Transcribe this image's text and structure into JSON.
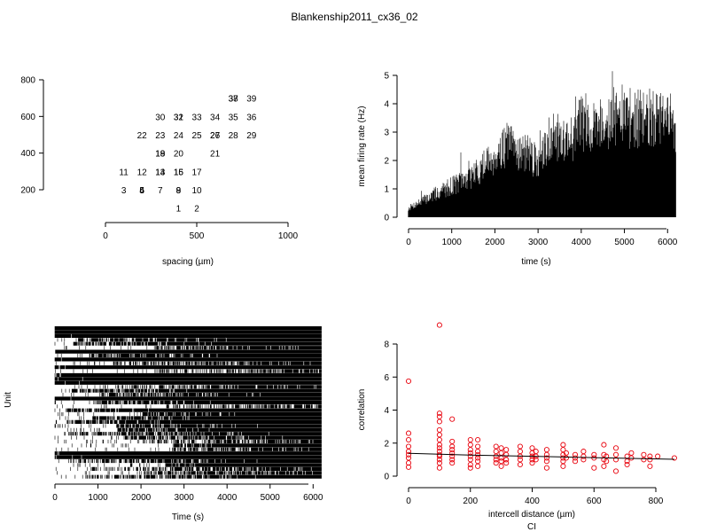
{
  "figure_title": "Blankenship2011_cx36_02",
  "chart_data": [
    {
      "type": "scatter",
      "panel": "electrode-layout",
      "xlabel": "spacing (µm)",
      "ylabel": "",
      "xlim": [
        0,
        1000
      ],
      "ylim": [
        150,
        850
      ],
      "x_ticks": [
        "0",
        "500",
        "1000"
      ],
      "y_ticks": [
        "200",
        "400",
        "600",
        "800"
      ],
      "point_labels": [
        {
          "label": "1",
          "x": 400,
          "y": 100
        },
        {
          "label": "2",
          "x": 500,
          "y": 100
        },
        {
          "label": "3",
          "x": 100,
          "y": 200
        },
        {
          "label": "4",
          "x": 200,
          "y": 200
        },
        {
          "label": "5",
          "x": 200,
          "y": 200
        },
        {
          "label": "6",
          "x": 200,
          "y": 200
        },
        {
          "label": "7",
          "x": 300,
          "y": 200
        },
        {
          "label": "8",
          "x": 400,
          "y": 200
        },
        {
          "label": "9",
          "x": 400,
          "y": 200
        },
        {
          "label": "10",
          "x": 500,
          "y": 200
        },
        {
          "label": "11",
          "x": 100,
          "y": 300
        },
        {
          "label": "12",
          "x": 200,
          "y": 300
        },
        {
          "label": "13",
          "x": 300,
          "y": 300
        },
        {
          "label": "14",
          "x": 300,
          "y": 300
        },
        {
          "label": "15",
          "x": 400,
          "y": 300
        },
        {
          "label": "16",
          "x": 400,
          "y": 300
        },
        {
          "label": "17",
          "x": 500,
          "y": 300
        },
        {
          "label": "18",
          "x": 300,
          "y": 400
        },
        {
          "label": "19",
          "x": 300,
          "y": 400
        },
        {
          "label": "20",
          "x": 400,
          "y": 400
        },
        {
          "label": "21",
          "x": 600,
          "y": 400
        },
        {
          "label": "22",
          "x": 200,
          "y": 500
        },
        {
          "label": "23",
          "x": 300,
          "y": 500
        },
        {
          "label": "24",
          "x": 400,
          "y": 500
        },
        {
          "label": "25",
          "x": 500,
          "y": 500
        },
        {
          "label": "26",
          "x": 600,
          "y": 500
        },
        {
          "label": "27",
          "x": 600,
          "y": 500
        },
        {
          "label": "28",
          "x": 700,
          "y": 500
        },
        {
          "label": "29",
          "x": 800,
          "y": 500
        },
        {
          "label": "30",
          "x": 300,
          "y": 600
        },
        {
          "label": "31",
          "x": 400,
          "y": 600
        },
        {
          "label": "32",
          "x": 400,
          "y": 600
        },
        {
          "label": "33",
          "x": 500,
          "y": 600
        },
        {
          "label": "34",
          "x": 600,
          "y": 600
        },
        {
          "label": "35",
          "x": 700,
          "y": 600
        },
        {
          "label": "36",
          "x": 800,
          "y": 600
        },
        {
          "label": "37",
          "x": 700,
          "y": 700
        },
        {
          "label": "38",
          "x": 700,
          "y": 700
        },
        {
          "label": "39",
          "x": 800,
          "y": 700
        }
      ]
    },
    {
      "type": "area",
      "panel": "mean-firing-rate",
      "xlabel": "time (s)",
      "ylabel": "mean firing rate (Hz)",
      "xlim": [
        0,
        6200
      ],
      "ylim": [
        0,
        5
      ],
      "x_ticks": [
        "0",
        "1000",
        "2000",
        "3000",
        "4000",
        "5000",
        "6000"
      ],
      "y_ticks": [
        "0",
        "1",
        "2",
        "3",
        "4",
        "5"
      ],
      "envelope": {
        "x": [
          0,
          200,
          500,
          800,
          1000,
          1300,
          1600,
          1900,
          2100,
          2300,
          2500,
          2800,
          3000,
          3100,
          3250,
          3500,
          3800,
          4000,
          4300,
          4600,
          4900,
          5200,
          5500,
          5800,
          6000,
          6200
        ],
        "y": [
          0.4,
          0.6,
          0.9,
          1.2,
          1.4,
          1.6,
          2.0,
          2.5,
          2.9,
          3.2,
          3.0,
          2.7,
          2.4,
          2.6,
          3.6,
          3.5,
          3.5,
          4.2,
          4.1,
          4.3,
          4.5,
          4.3,
          4.4,
          4.2,
          4.3,
          4.0
        ]
      }
    },
    {
      "type": "heatmap",
      "panel": "raster",
      "xlabel": "Time (s)",
      "ylabel": "Unit",
      "xlim": [
        0,
        6200
      ],
      "x_ticks": [
        "0",
        "1000",
        "2000",
        "3000",
        "4000",
        "5000",
        "6000"
      ],
      "units": 39
    },
    {
      "type": "scatter",
      "panel": "correlation",
      "title": "",
      "xlabel": "intercell distance (µm)",
      "subtitle": "CI",
      "ylabel": "correlation",
      "xlim": [
        0,
        860
      ],
      "ylim": [
        0,
        9
      ],
      "x_ticks": [
        "0",
        "200",
        "400",
        "600",
        "800"
      ],
      "y_ticks": [
        "0",
        "2",
        "4",
        "6",
        "8"
      ],
      "point_color": "#e8000b",
      "fit_line": {
        "x": [
          0,
          200,
          400,
          600,
          860
        ],
        "y": [
          1.38,
          1.28,
          1.2,
          1.12,
          1.02
        ]
      },
      "points": [
        [
          0,
          5.75
        ],
        [
          0,
          2.6
        ],
        [
          0,
          2.2
        ],
        [
          0,
          1.8
        ],
        [
          0,
          1.5
        ],
        [
          0,
          1.3
        ],
        [
          0,
          1.1
        ],
        [
          0,
          0.8
        ],
        [
          0,
          0.55
        ],
        [
          100,
          9.15
        ],
        [
          100,
          3.8
        ],
        [
          100,
          3.6
        ],
        [
          100,
          3.3
        ],
        [
          100,
          2.8
        ],
        [
          100,
          2.5
        ],
        [
          100,
          2.2
        ],
        [
          100,
          1.9
        ],
        [
          100,
          1.7
        ],
        [
          100,
          1.5
        ],
        [
          100,
          1.3
        ],
        [
          100,
          1.2
        ],
        [
          100,
          1.0
        ],
        [
          100,
          0.8
        ],
        [
          100,
          0.5
        ],
        [
          141,
          3.45
        ],
        [
          141,
          2.1
        ],
        [
          141,
          1.8
        ],
        [
          141,
          1.6
        ],
        [
          141,
          1.4
        ],
        [
          141,
          1.2
        ],
        [
          141,
          1.0
        ],
        [
          141,
          0.8
        ],
        [
          200,
          2.2
        ],
        [
          200,
          1.9
        ],
        [
          200,
          1.6
        ],
        [
          200,
          1.4
        ],
        [
          200,
          1.2
        ],
        [
          200,
          1.0
        ],
        [
          200,
          0.7
        ],
        [
          200,
          0.5
        ],
        [
          224,
          2.2
        ],
        [
          224,
          1.8
        ],
        [
          224,
          1.5
        ],
        [
          224,
          1.3
        ],
        [
          224,
          1.1
        ],
        [
          224,
          0.9
        ],
        [
          224,
          0.6
        ],
        [
          283,
          1.8
        ],
        [
          283,
          1.5
        ],
        [
          283,
          1.2
        ],
        [
          283,
          1.0
        ],
        [
          283,
          0.8
        ],
        [
          300,
          1.7
        ],
        [
          300,
          1.4
        ],
        [
          300,
          1.1
        ],
        [
          300,
          0.9
        ],
        [
          300,
          0.6
        ],
        [
          316,
          1.6
        ],
        [
          316,
          1.3
        ],
        [
          316,
          1.0
        ],
        [
          316,
          0.8
        ],
        [
          361,
          1.8
        ],
        [
          361,
          1.5
        ],
        [
          361,
          1.2
        ],
        [
          361,
          1.0
        ],
        [
          361,
          0.7
        ],
        [
          400,
          1.7
        ],
        [
          400,
          1.4
        ],
        [
          400,
          1.2
        ],
        [
          400,
          1.0
        ],
        [
          400,
          0.8
        ],
        [
          412,
          1.5
        ],
        [
          412,
          1.2
        ],
        [
          412,
          1.0
        ],
        [
          447,
          1.6
        ],
        [
          447,
          1.3
        ],
        [
          447,
          1.1
        ],
        [
          447,
          0.9
        ],
        [
          447,
          0.5
        ],
        [
          500,
          1.9
        ],
        [
          500,
          1.6
        ],
        [
          500,
          1.3
        ],
        [
          500,
          1.1
        ],
        [
          500,
          0.9
        ],
        [
          500,
          0.6
        ],
        [
          510,
          1.4
        ],
        [
          510,
          1.1
        ],
        [
          539,
          1.3
        ],
        [
          539,
          1.1
        ],
        [
          539,
          0.9
        ],
        [
          566,
          1.5
        ],
        [
          566,
          1.2
        ],
        [
          566,
          1.0
        ],
        [
          600,
          1.3
        ],
        [
          600,
          1.1
        ],
        [
          600,
          0.5
        ],
        [
          632,
          1.9
        ],
        [
          632,
          1.3
        ],
        [
          632,
          1.0
        ],
        [
          632,
          0.6
        ],
        [
          640,
          1.2
        ],
        [
          640,
          0.9
        ],
        [
          671,
          1.7
        ],
        [
          671,
          1.3
        ],
        [
          671,
          1.0
        ],
        [
          671,
          0.3
        ],
        [
          707,
          1.2
        ],
        [
          707,
          0.9
        ],
        [
          707,
          0.7
        ],
        [
          721,
          1.4
        ],
        [
          721,
          1.1
        ],
        [
          761,
          1.3
        ],
        [
          761,
          1.0
        ],
        [
          781,
          1.2
        ],
        [
          781,
          1.0
        ],
        [
          781,
          0.6
        ],
        [
          806,
          1.2
        ],
        [
          860,
          1.1
        ]
      ]
    }
  ]
}
